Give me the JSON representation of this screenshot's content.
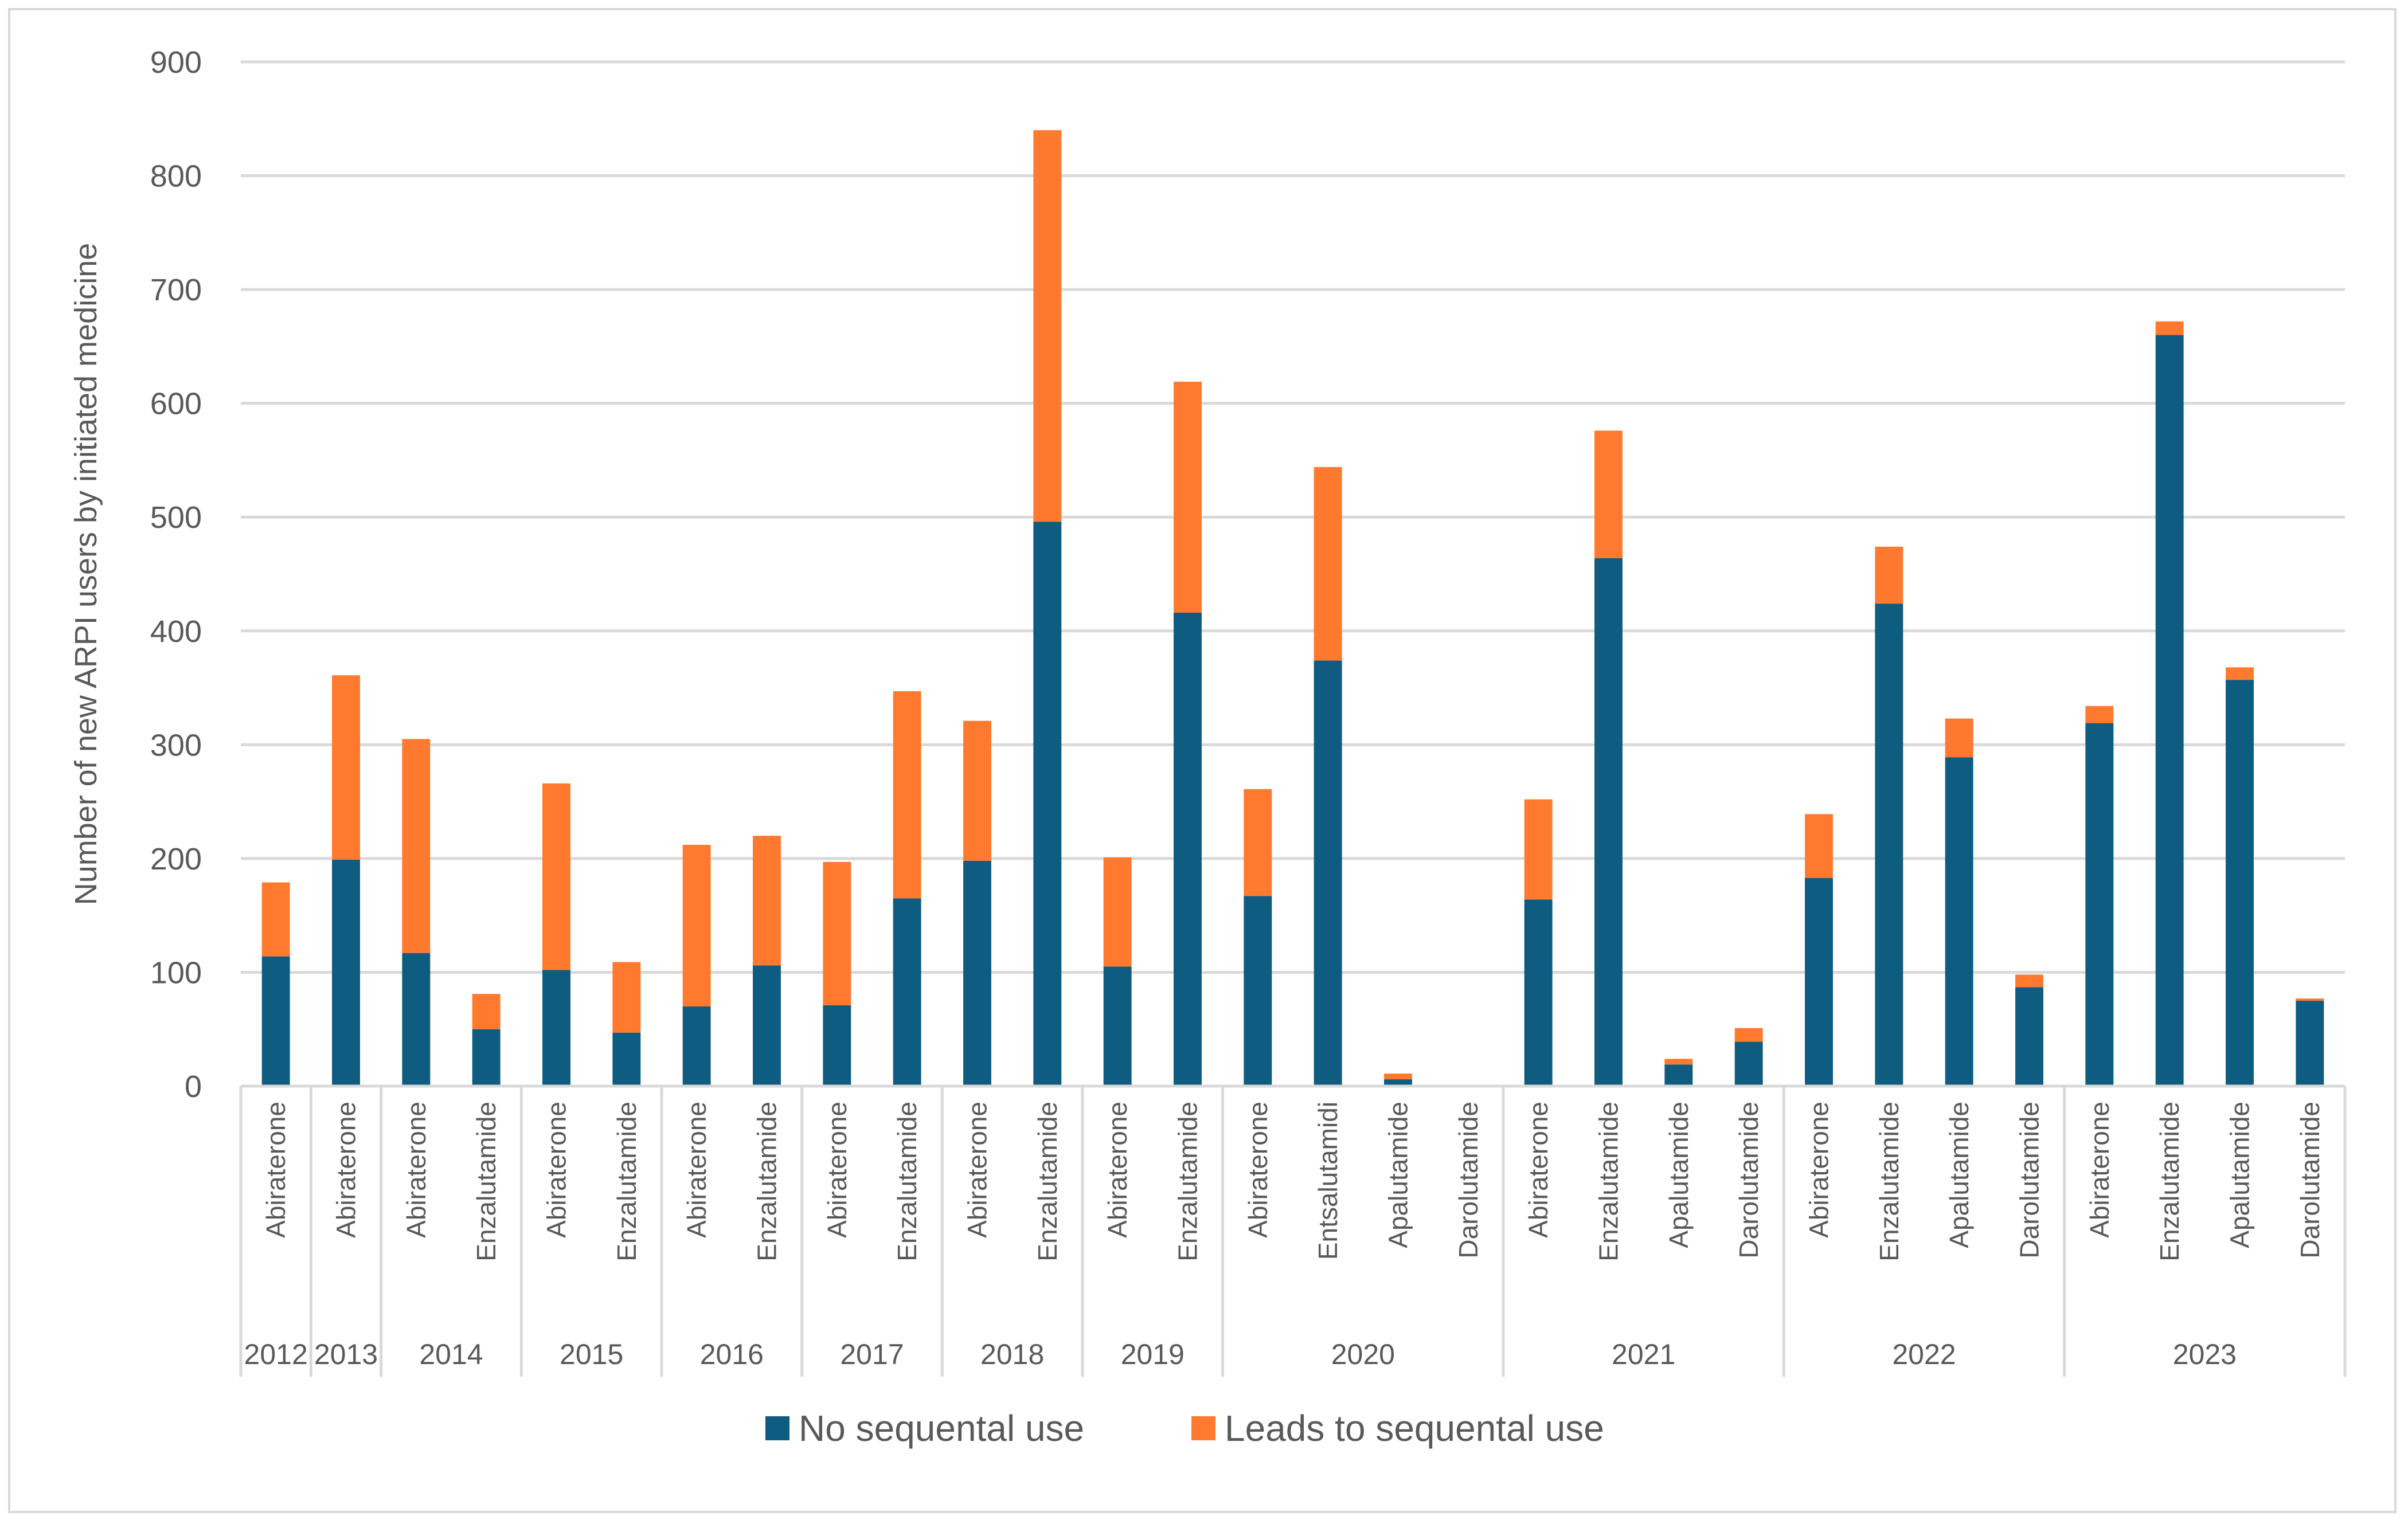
{
  "chart_data": {
    "type": "bar",
    "stacked": true,
    "title": "",
    "xlabel": "",
    "ylabel": "Number of new ARPI users  by initiated medicine",
    "ylim": [
      0,
      900
    ],
    "yticks": [
      0,
      100,
      200,
      300,
      400,
      500,
      600,
      700,
      800,
      900
    ],
    "grid": true,
    "legend_position": "bottom",
    "groups": [
      {
        "year": "2012",
        "categories": [
          "Abiraterone"
        ]
      },
      {
        "year": "2013",
        "categories": [
          "Abiraterone"
        ]
      },
      {
        "year": "2014",
        "categories": [
          "Abiraterone",
          "Enzalutamide"
        ]
      },
      {
        "year": "2015",
        "categories": [
          "Abiraterone",
          "Enzalutamide"
        ]
      },
      {
        "year": "2016",
        "categories": [
          "Abiraterone",
          "Enzalutamide"
        ]
      },
      {
        "year": "2017",
        "categories": [
          "Abiraterone",
          "Enzalutamide"
        ]
      },
      {
        "year": "2018",
        "categories": [
          "Abiraterone",
          "Enzalutamide"
        ]
      },
      {
        "year": "2019",
        "categories": [
          "Abiraterone",
          "Enzalutamide"
        ]
      },
      {
        "year": "2020",
        "categories": [
          "Abiraterone",
          "Entsalutamidi",
          "Apalutamide",
          "Darolutamide"
        ]
      },
      {
        "year": "2021",
        "categories": [
          "Abiraterone",
          "Enzalutamide",
          "Apalutamide",
          "Darolutamide"
        ]
      },
      {
        "year": "2022",
        "categories": [
          "Abiraterone",
          "Enzalutamide",
          "Apalutamide",
          "Darolutamide"
        ]
      },
      {
        "year": "2023",
        "categories": [
          "Abiraterone",
          "Enzalutamide",
          "Apalutamide",
          "Darolutamide"
        ]
      }
    ],
    "series": [
      {
        "name": "No sequental use",
        "color": "#0e5c80",
        "values": [
          114,
          199,
          117,
          50,
          102,
          47,
          70,
          106,
          71,
          165,
          198,
          496,
          105,
          416,
          167,
          374,
          6,
          0,
          164,
          464,
          19,
          39,
          183,
          424,
          289,
          87,
          319,
          660,
          357,
          75
        ]
      },
      {
        "name": "Leads to sequental use",
        "color": "#ff7a2f",
        "values": [
          65,
          162,
          188,
          31,
          164,
          62,
          142,
          114,
          126,
          182,
          123,
          344,
          96,
          203,
          94,
          170,
          5,
          0,
          88,
          112,
          5,
          12,
          56,
          50,
          34,
          11,
          15,
          12,
          11,
          2
        ]
      }
    ]
  }
}
